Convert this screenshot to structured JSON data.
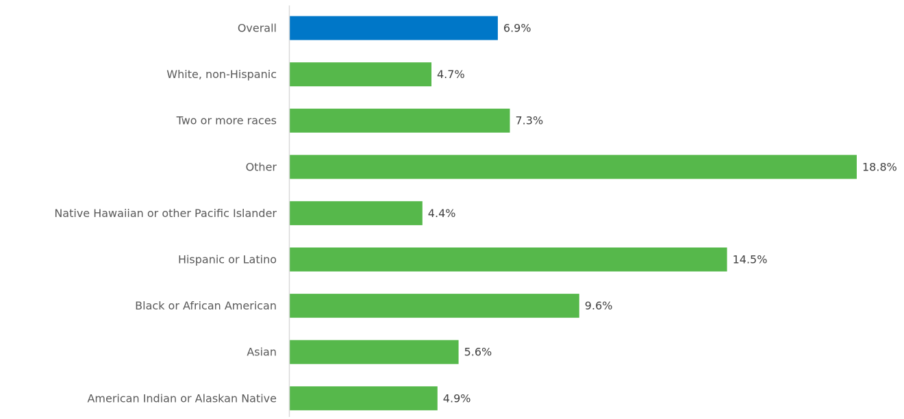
{
  "chart_data": {
    "type": "bar",
    "orientation": "horizontal",
    "categories": [
      "Overall",
      "White, non-Hispanic",
      "Two or more races",
      "Other",
      "Native Hawaiian or other Pacific Islander",
      "Hispanic or Latino",
      "Black or African American",
      "Asian",
      "American Indian or Alaskan Native"
    ],
    "values": [
      6.9,
      4.7,
      7.3,
      18.8,
      4.4,
      14.5,
      9.6,
      5.6,
      4.9
    ],
    "value_labels": [
      "6.9%",
      "4.7%",
      "7.3%",
      "18.8%",
      "4.4%",
      "14.5%",
      "9.6%",
      "5.6%",
      "4.9%"
    ],
    "bar_colors": [
      "#0077C8",
      "#56B84B",
      "#56B84B",
      "#56B84B",
      "#56B84B",
      "#56B84B",
      "#56B84B",
      "#56B84B",
      "#56B84B"
    ],
    "xlim": [
      0,
      18.8
    ],
    "grid": false,
    "legend": "none"
  },
  "colors": {
    "highlight": "#0077C8",
    "bar": "#56B84B",
    "axis": "#D9D9D9"
  }
}
